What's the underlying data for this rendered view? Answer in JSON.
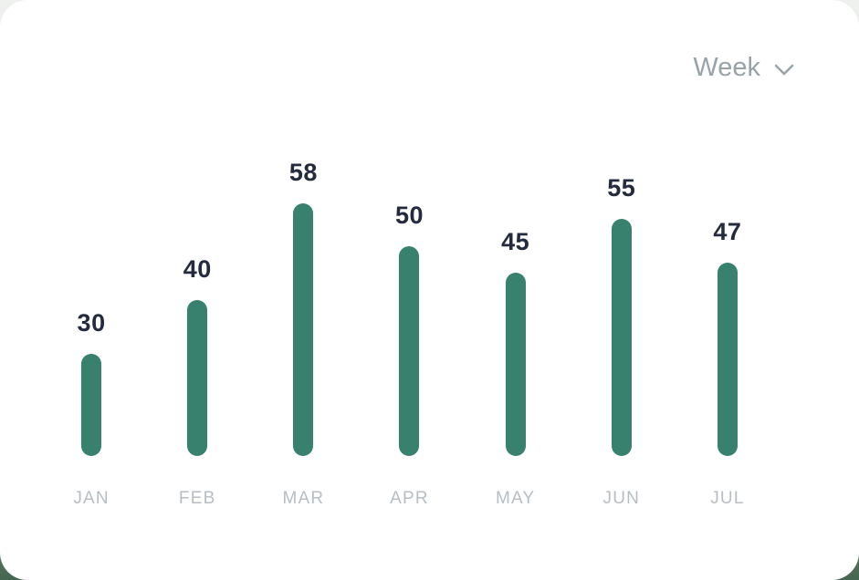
{
  "period_selector": {
    "label": "Week",
    "icon": "chevron-down-icon"
  },
  "chart_data": {
    "type": "bar",
    "categories": [
      "JAN",
      "FEB",
      "MAR",
      "APR",
      "MAY",
      "JUN",
      "JUL"
    ],
    "values": [
      30,
      40,
      58,
      50,
      45,
      55,
      47
    ],
    "title": "",
    "xlabel": "",
    "ylabel": "",
    "grid": false,
    "legend": false,
    "orientation": "vertical",
    "bar_color": "#38816E",
    "value_label_color": "#242B3E",
    "category_label_color": "#B7BEC3"
  }
}
